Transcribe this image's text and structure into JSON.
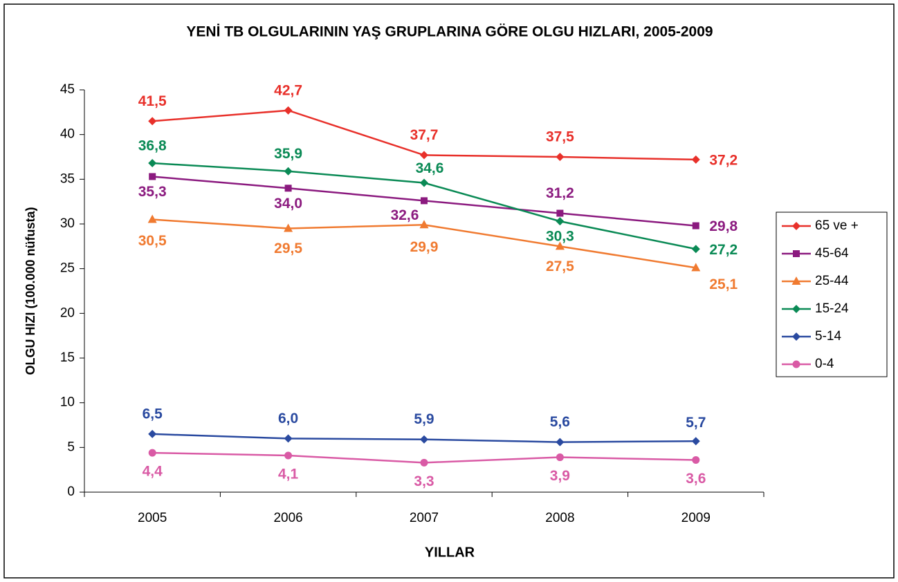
{
  "chart_data": {
    "type": "line",
    "title": "YENİ TB OLGULARININ YAŞ GRUPLARINA GÖRE OLGU HIZLARI, 2005-2009",
    "x_label": "YILLAR",
    "y_label": "OLGU HIZI (100.000 nüfusta)",
    "categories": [
      "2005",
      "2006",
      "2007",
      "2008",
      "2009"
    ],
    "ylim": [
      0,
      45
    ],
    "yticks": [
      0,
      5,
      10,
      15,
      20,
      25,
      30,
      35,
      40,
      45
    ],
    "legend": "right",
    "series": [
      {
        "name": "65 ve +",
        "color": "#e8302a",
        "marker": "diamond",
        "values": [
          41.5,
          42.7,
          37.7,
          37.5,
          37.2
        ],
        "value_labels": [
          "41,5",
          "42,7",
          "37,7",
          "37,5",
          "37,2"
        ]
      },
      {
        "name": "45-64",
        "color": "#8b1a7f",
        "marker": "square",
        "values": [
          35.3,
          34.0,
          32.6,
          31.2,
          29.8
        ],
        "value_labels": [
          "35,3",
          "34,0",
          "32,6",
          "31,2",
          "29,8"
        ]
      },
      {
        "name": "25-44",
        "color": "#f07a30",
        "marker": "triangle",
        "values": [
          30.5,
          29.5,
          29.9,
          27.5,
          25.1
        ],
        "value_labels": [
          "30,5",
          "29,5",
          "29,9",
          "27,5",
          "25,1"
        ]
      },
      {
        "name": "15-24",
        "color": "#0a8a55",
        "marker": "diamond",
        "values": [
          36.8,
          35.9,
          34.6,
          30.3,
          27.2
        ],
        "value_labels": [
          "36,8",
          "35,9",
          "34,6",
          "30,3",
          "27,2"
        ]
      },
      {
        "name": "5-14",
        "color": "#2a4aa0",
        "marker": "diamond",
        "values": [
          6.5,
          6.0,
          5.9,
          5.6,
          5.7
        ],
        "value_labels": [
          "6,5",
          "6,0",
          "5,9",
          "5,6",
          "5,7"
        ]
      },
      {
        "name": "0-4",
        "color": "#d95aa5",
        "marker": "circle",
        "values": [
          4.4,
          4.1,
          3.3,
          3.9,
          3.6
        ],
        "value_labels": [
          "4,4",
          "4,1",
          "3,3",
          "3,9",
          "3,6"
        ]
      }
    ]
  }
}
